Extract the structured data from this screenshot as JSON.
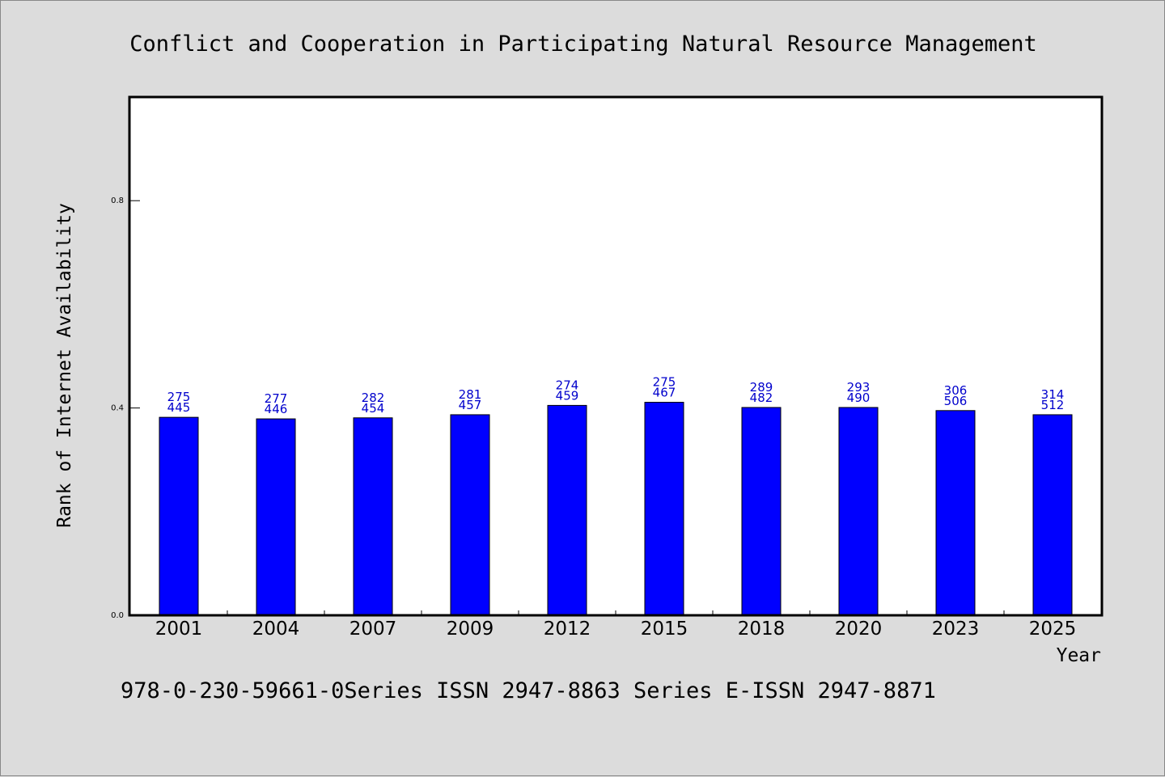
{
  "chart_data": {
    "type": "bar",
    "title": "Conflict and Cooperation in Participating Natural Resource Management",
    "xlabel": "Year",
    "ylabel": "Rank of Internet Availability",
    "categories": [
      "2001",
      "2004",
      "2007",
      "2009",
      "2012",
      "2015",
      "2018",
      "2020",
      "2023",
      "2025"
    ],
    "values": [
      0.382,
      0.379,
      0.381,
      0.387,
      0.405,
      0.411,
      0.401,
      0.401,
      0.395,
      0.387
    ],
    "data_labels_top": [
      "275",
      "277",
      "282",
      "281",
      "274",
      "275",
      "289",
      "293",
      "306",
      "314"
    ],
    "data_labels_bottom": [
      "445",
      "446",
      "454",
      "457",
      "459",
      "467",
      "482",
      "490",
      "506",
      "512"
    ],
    "yticks": [
      "0.0",
      "0.4",
      "0.8"
    ],
    "ylim": [
      0,
      1.0
    ],
    "grid": false,
    "bar_color": "#0000ff",
    "label_color": "#0000cc"
  },
  "footer": "978-0-230-59661-0Series ISSN 2947-8863 Series E-ISSN 2947-8871"
}
